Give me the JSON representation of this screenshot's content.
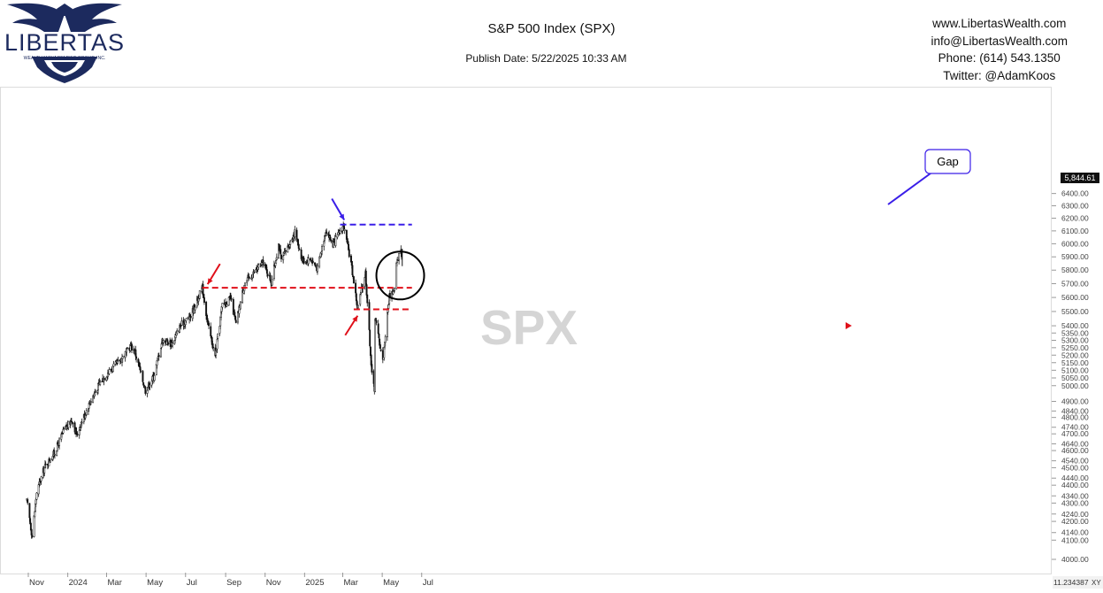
{
  "header": {
    "logo_text": "LIBERTAS",
    "logo_subtext": "WEALTH MANAGEMENT GROUP, INC.",
    "title": "S&P 500 Index (SPX)",
    "publish_date": "Publish Date: 5/22/2025 10:33 AM",
    "contact": {
      "website": "www.LibertasWealth.com",
      "email": "info@LibertasWealth.com",
      "phone": "Phone:  (614) 543.1350",
      "twitter": "Twitter:  @AdamKoos"
    }
  },
  "colors": {
    "red_line": "#e0101a",
    "blue_line": "#3a1ee8",
    "candles": "#111111",
    "logo_navy": "#1c2a5e"
  },
  "chart_data": {
    "type": "candlestick",
    "symbol": "SPX",
    "watermark": "SPX",
    "last_price": "5,844.61",
    "scale": "log",
    "ylim": [
      3940,
      6420
    ],
    "x_ticks": [
      "Nov",
      "2024",
      "Mar",
      "May",
      "Jul",
      "Sep",
      "Nov",
      "2025",
      "Mar",
      "May",
      "Jul"
    ],
    "y_ticks": [
      "6400.00",
      "6300.00",
      "6200.00",
      "6100.00",
      "6000.00",
      "5900.00",
      "5800.00",
      "5700.00",
      "5600.00",
      "5500.00",
      "5400.00",
      "5350.00",
      "5300.00",
      "5250.00",
      "5200.00",
      "5150.00",
      "5100.00",
      "5050.00",
      "5000.00",
      "4900.00",
      "4840.00",
      "4800.00",
      "4740.00",
      "4700.00",
      "4640.00",
      "4600.00",
      "4540.00",
      "4500.00",
      "4440.00",
      "4400.00",
      "4340.00",
      "4300.00",
      "4240.00",
      "4200.00",
      "4140.00",
      "4100.00",
      "4000.00"
    ],
    "y_tick_values": [
      6400,
      6300,
      6200,
      6100,
      6000,
      5900,
      5800,
      5700,
      5600,
      5500,
      5400,
      5350,
      5300,
      5250,
      5200,
      5150,
      5100,
      5050,
      5000,
      4900,
      4840,
      4800,
      4740,
      4700,
      4640,
      4600,
      4540,
      4500,
      4440,
      4400,
      4340,
      4300,
      4240,
      4200,
      4140,
      4100,
      4000
    ],
    "bottom_right_label": "11.234387",
    "xy_label": "XY",
    "close_path": [
      [
        "2023-10-19",
        4310
      ],
      [
        "2023-10-27",
        4120
      ],
      [
        "2023-11-03",
        4360
      ],
      [
        "2023-11-15",
        4500
      ],
      [
        "2023-12-01",
        4590
      ],
      [
        "2023-12-15",
        4720
      ],
      [
        "2023-12-28",
        4785
      ],
      [
        "2024-01-04",
        4690
      ],
      [
        "2024-01-12",
        4780
      ],
      [
        "2024-01-25",
        4900
      ],
      [
        "2024-02-09",
        5020
      ],
      [
        "2024-02-22",
        5090
      ],
      [
        "2024-03-08",
        5150
      ],
      [
        "2024-03-28",
        5260
      ],
      [
        "2024-04-03",
        5220
      ],
      [
        "2024-04-19",
        4970
      ],
      [
        "2024-05-02",
        5060
      ],
      [
        "2024-05-15",
        5300
      ],
      [
        "2024-05-31",
        5280
      ],
      [
        "2024-06-12",
        5400
      ],
      [
        "2024-06-28",
        5470
      ],
      [
        "2024-07-16",
        5670
      ],
      [
        "2024-07-25",
        5400
      ],
      [
        "2024-08-05",
        5190
      ],
      [
        "2024-08-16",
        5550
      ],
      [
        "2024-08-29",
        5590
      ],
      [
        "2024-09-06",
        5410
      ],
      [
        "2024-09-19",
        5700
      ],
      [
        "2024-09-30",
        5760
      ],
      [
        "2024-10-18",
        5860
      ],
      [
        "2024-10-31",
        5710
      ],
      [
        "2024-11-11",
        6000
      ],
      [
        "2024-11-15",
        5870
      ],
      [
        "2024-12-06",
        6090
      ],
      [
        "2024-12-18",
        5870
      ],
      [
        "2024-12-31",
        5880
      ],
      [
        "2025-01-10",
        5810
      ],
      [
        "2025-01-23",
        6110
      ],
      [
        "2025-02-03",
        5990
      ],
      [
        "2025-02-19",
        6144
      ],
      [
        "2025-03-03",
        5850
      ],
      [
        "2025-03-13",
        5520
      ],
      [
        "2025-03-25",
        5780
      ],
      [
        "2025-04-04",
        5070
      ],
      [
        "2025-04-08",
        4982
      ],
      [
        "2025-04-09",
        5457
      ],
      [
        "2025-04-21",
        5160
      ],
      [
        "2025-05-01",
        5610
      ],
      [
        "2025-05-09",
        5660
      ],
      [
        "2025-05-12",
        5845
      ],
      [
        "2025-05-19",
        5960
      ],
      [
        "2025-05-21",
        5845
      ]
    ],
    "annotations": [
      {
        "type": "hline",
        "color": "red",
        "y": 5670,
        "x_from": "2024-07-16",
        "x_to": "2025-06-05",
        "style": "dashed"
      },
      {
        "type": "hline",
        "color": "red",
        "y": 5515,
        "x_from": "2025-03-07",
        "x_to": "2025-06-05",
        "style": "dashed"
      },
      {
        "type": "hline",
        "color": "blue",
        "y": 6150,
        "x_from": "2025-02-14",
        "x_to": "2025-06-05",
        "style": "dashed"
      },
      {
        "type": "arrow",
        "color": "red",
        "at": [
          "2024-07-16",
          5670
        ]
      },
      {
        "type": "arrow",
        "color": "red",
        "at": [
          "2025-03-13",
          5520
        ]
      },
      {
        "type": "arrow",
        "color": "blue",
        "at": [
          "2025-02-19",
          6144
        ]
      },
      {
        "type": "circle",
        "at": [
          "2025-05-07",
          5760
        ]
      },
      {
        "type": "callout",
        "text": "Gap"
      }
    ]
  }
}
